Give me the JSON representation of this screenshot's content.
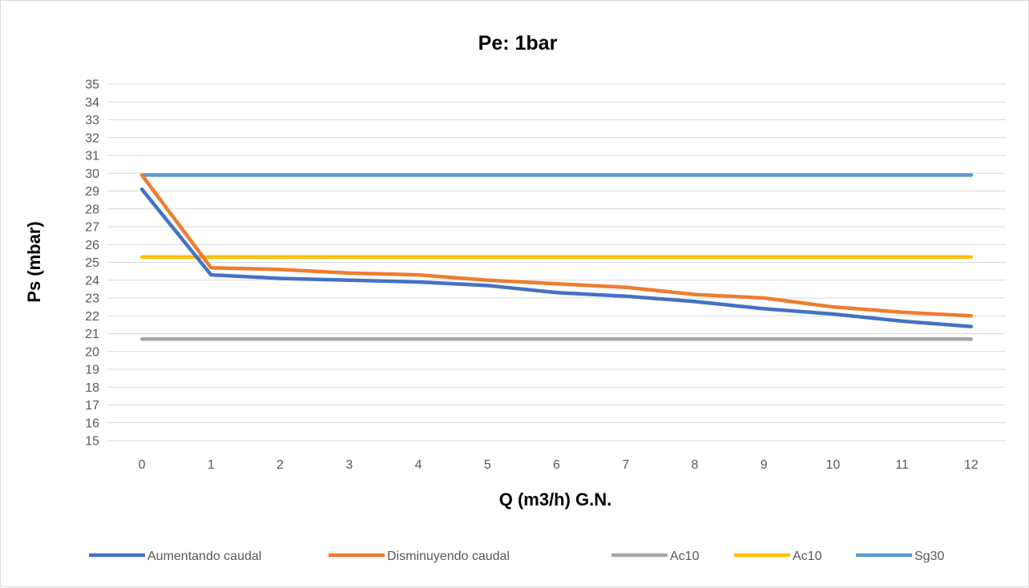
{
  "chart_data": {
    "type": "line",
    "title": "Pe: 1bar",
    "xlabel": "Q (m3/h) G.N.",
    "ylabel": "Ps (mbar)",
    "x": [
      0,
      1,
      2,
      3,
      4,
      5,
      6,
      7,
      8,
      9,
      10,
      11,
      12
    ],
    "x_tick_labels": [
      "0",
      "1",
      "2",
      "3",
      "4",
      "5",
      "6",
      "7",
      "8",
      "9",
      "10",
      "11",
      "12"
    ],
    "ylim": [
      15,
      35
    ],
    "y_tick_labels": [
      "15",
      "16",
      "17",
      "18",
      "19",
      "20",
      "21",
      "22",
      "23",
      "24",
      "25",
      "26",
      "27",
      "28",
      "29",
      "30",
      "31",
      "32",
      "33",
      "34",
      "35"
    ],
    "grid": true,
    "legend_position": "bottom",
    "series": [
      {
        "name": "Aumentando caudal",
        "color": "#4472c4",
        "values": [
          29.1,
          24.3,
          24.1,
          24.0,
          23.9,
          23.7,
          23.3,
          23.1,
          22.8,
          22.4,
          22.1,
          21.7,
          21.4
        ]
      },
      {
        "name": "Disminuyendo caudal",
        "color": "#ed7d31",
        "values": [
          29.9,
          24.7,
          24.6,
          24.4,
          24.3,
          24.0,
          23.8,
          23.6,
          23.2,
          23.0,
          22.5,
          22.2,
          22.0
        ]
      },
      {
        "name": "Ac10",
        "color": "#a5a5a5",
        "values": [
          20.7,
          20.7,
          20.7,
          20.7,
          20.7,
          20.7,
          20.7,
          20.7,
          20.7,
          20.7,
          20.7,
          20.7,
          20.7
        ]
      },
      {
        "name": "Ac10",
        "color": "#ffc000",
        "values": [
          25.3,
          25.3,
          25.3,
          25.3,
          25.3,
          25.3,
          25.3,
          25.3,
          25.3,
          25.3,
          25.3,
          25.3,
          25.3
        ]
      },
      {
        "name": "Sg30",
        "color": "#5b9bd5",
        "values": [
          29.9,
          29.9,
          29.9,
          29.9,
          29.9,
          29.9,
          29.9,
          29.9,
          29.9,
          29.9,
          29.9,
          29.9,
          29.9
        ]
      }
    ]
  }
}
